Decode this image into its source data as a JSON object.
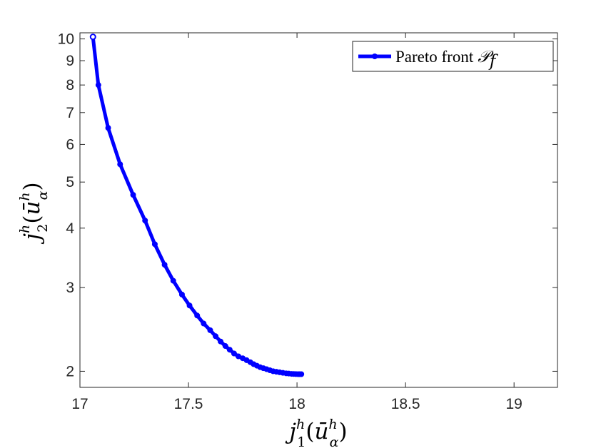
{
  "chart_data": {
    "type": "line",
    "x_scale": "linear",
    "y_scale": "log",
    "xlim": [
      17.0,
      19.2
    ],
    "ylim": [
      1.85,
      10.3
    ],
    "x_ticks": [
      17,
      17.5,
      18,
      18.5,
      19
    ],
    "x_tick_labels": [
      "17",
      "17.5",
      "18",
      "18.5",
      "19"
    ],
    "y_ticks": [
      2,
      3,
      4,
      5,
      6,
      7,
      8,
      9,
      10
    ],
    "y_tick_labels": [
      "2",
      "3",
      "4",
      "5",
      "6",
      "7",
      "8",
      "9",
      "10"
    ],
    "xlabel": {
      "base": "j",
      "sup": "h",
      "sub": "1",
      "arg_open": "(",
      "arg_base": "ū",
      "arg_sup": "h",
      "arg_sub": "α",
      "arg_close": ")"
    },
    "ylabel": {
      "base": "j",
      "sup": "h",
      "sub": "2",
      "arg_open": "(",
      "arg_base": "ū",
      "arg_sup": "h",
      "arg_sub": "α",
      "arg_close": ")"
    },
    "grid": false,
    "legend_position": "top-right",
    "series": [
      {
        "name": "Pareto front",
        "name_math": "𝒫",
        "name_math_sub": "f",
        "color": "#0000ff",
        "marker": "circle",
        "x": [
          17.06,
          17.085,
          17.13,
          17.185,
          17.245,
          17.3,
          17.345,
          17.39,
          17.43,
          17.47,
          17.505,
          17.54,
          17.57,
          17.6,
          17.625,
          17.648,
          17.67,
          17.69,
          17.71,
          17.73,
          17.75,
          17.768,
          17.785,
          17.8,
          17.815,
          17.83,
          17.845,
          17.86,
          17.875,
          17.89,
          17.905,
          17.92,
          17.935,
          17.95,
          17.962,
          17.975,
          17.985,
          17.995,
          18.005,
          18.012,
          18.02
        ],
        "y": [
          10.1,
          8.0,
          6.5,
          5.45,
          4.7,
          4.15,
          3.7,
          3.35,
          3.1,
          2.9,
          2.75,
          2.62,
          2.52,
          2.44,
          2.37,
          2.31,
          2.26,
          2.22,
          2.18,
          2.15,
          2.13,
          2.11,
          2.09,
          2.07,
          2.055,
          2.04,
          2.03,
          2.02,
          2.01,
          2.0,
          1.995,
          1.99,
          1.985,
          1.98,
          1.978,
          1.975,
          1.974,
          1.973,
          1.972,
          1.972,
          1.972
        ]
      }
    ]
  }
}
